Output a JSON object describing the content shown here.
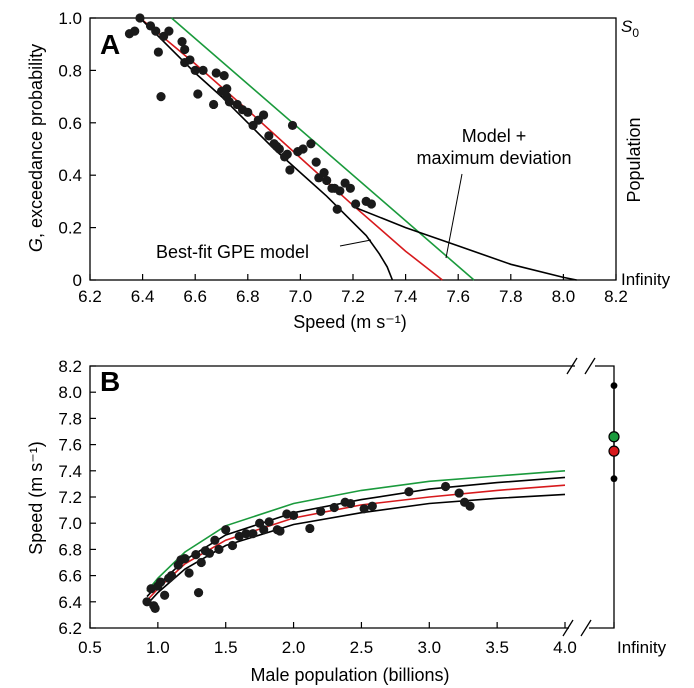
{
  "colors": {
    "model": "#d7191c",
    "max_deviation": "#1a9a3c",
    "fit": "#000000",
    "points": "#1a1a1a"
  },
  "chart_data": [
    {
      "panel": "A",
      "type": "scatter",
      "xlabel": "Speed (m s⁻¹)",
      "ylabel_italic": "G",
      "ylabel_rest": ", exceedance probability",
      "right_labels": {
        "top": "S",
        "top_sub": "0",
        "middle": "Population",
        "bottom": "Infinity"
      },
      "xlim": [
        6.2,
        8.2
      ],
      "ylim": [
        0,
        1.0
      ],
      "xticks": [
        "6.2",
        "6.4",
        "6.6",
        "6.8",
        "7.0",
        "7.2",
        "7.4",
        "7.6",
        "7.8",
        "8.0",
        "8.2"
      ],
      "yticks": [
        "0",
        "0.2",
        "0.4",
        "0.6",
        "0.8",
        "1.0"
      ],
      "annotations": {
        "best_fit": "Best-fit GPE model",
        "model_line1": "Model +",
        "model_line2": "maximum deviation"
      },
      "points": [
        [
          6.35,
          0.94
        ],
        [
          6.37,
          0.95
        ],
        [
          6.39,
          1.0
        ],
        [
          6.43,
          0.97
        ],
        [
          6.45,
          0.95
        ],
        [
          6.46,
          0.87
        ],
        [
          6.47,
          0.7
        ],
        [
          6.48,
          0.93
        ],
        [
          6.5,
          0.95
        ],
        [
          6.55,
          0.91
        ],
        [
          6.56,
          0.88
        ],
        [
          6.56,
          0.83
        ],
        [
          6.58,
          0.84
        ],
        [
          6.6,
          0.8
        ],
        [
          6.61,
          0.71
        ],
        [
          6.63,
          0.8
        ],
        [
          6.67,
          0.67
        ],
        [
          6.68,
          0.79
        ],
        [
          6.7,
          0.72
        ],
        [
          6.71,
          0.78
        ],
        [
          6.72,
          0.73
        ],
        [
          6.72,
          0.7
        ],
        [
          6.73,
          0.68
        ],
        [
          6.76,
          0.67
        ],
        [
          6.78,
          0.65
        ],
        [
          6.8,
          0.64
        ],
        [
          6.82,
          0.59
        ],
        [
          6.84,
          0.61
        ],
        [
          6.86,
          0.63
        ],
        [
          6.88,
          0.55
        ],
        [
          6.9,
          0.52
        ],
        [
          6.91,
          0.51
        ],
        [
          6.92,
          0.5
        ],
        [
          6.94,
          0.47
        ],
        [
          6.95,
          0.48
        ],
        [
          6.96,
          0.42
        ],
        [
          6.97,
          0.59
        ],
        [
          6.99,
          0.49
        ],
        [
          7.01,
          0.5
        ],
        [
          7.04,
          0.52
        ],
        [
          7.06,
          0.45
        ],
        [
          7.07,
          0.39
        ],
        [
          7.09,
          0.41
        ],
        [
          7.1,
          0.38
        ],
        [
          7.12,
          0.35
        ],
        [
          7.13,
          0.35
        ],
        [
          7.14,
          0.27
        ],
        [
          7.15,
          0.34
        ],
        [
          7.17,
          0.37
        ],
        [
          7.19,
          0.35
        ],
        [
          7.21,
          0.29
        ],
        [
          7.25,
          0.3
        ],
        [
          7.27,
          0.29
        ]
      ],
      "series": [
        {
          "key": "max_deviation",
          "x": [
            6.51,
            7.66
          ],
          "y": [
            1.0,
            0.0
          ]
        },
        {
          "key": "model",
          "x": [
            6.39,
            6.6,
            6.8,
            7.0,
            7.2,
            7.4,
            7.54
          ],
          "y": [
            1.0,
            0.825,
            0.648,
            0.466,
            0.285,
            0.11,
            0.0
          ]
        },
        {
          "key": "fit",
          "x": [
            6.39,
            6.5,
            6.6,
            6.7,
            6.8,
            6.9,
            7.0,
            7.1,
            7.2,
            7.25,
            7.3,
            7.33,
            7.35
          ],
          "y": [
            1.0,
            0.89,
            0.79,
            0.7,
            0.6,
            0.5,
            0.41,
            0.32,
            0.22,
            0.17,
            0.1,
            0.05,
            0.0
          ]
        },
        {
          "key": "fit",
          "x": [
            7.2,
            7.4,
            7.6,
            7.8,
            8.0,
            8.05
          ],
          "y": [
            0.28,
            0.2,
            0.13,
            0.06,
            0.01,
            0.0
          ]
        }
      ]
    },
    {
      "panel": "B",
      "type": "scatter",
      "xlabel": "Male population (billions)",
      "ylabel": "Speed (m s⁻¹)",
      "xlim": [
        0.5,
        4.0
      ],
      "ylim": [
        6.2,
        8.2
      ],
      "xticks": [
        "0.5",
        "1.0",
        "1.5",
        "2.0",
        "2.5",
        "3.0",
        "3.5",
        "4.0"
      ],
      "yticks": [
        "6.2",
        "6.4",
        "6.6",
        "6.8",
        "7.0",
        "7.2",
        "7.4",
        "7.6",
        "7.8",
        "8.0",
        "8.2"
      ],
      "infinity_label": "Infinity",
      "infinity_points": [
        {
          "y": 8.05,
          "key": "fit"
        },
        {
          "y": 7.66,
          "key": "max_deviation"
        },
        {
          "y": 7.55,
          "key": "model"
        },
        {
          "y": 7.34,
          "key": "fit"
        }
      ],
      "points": [
        [
          0.92,
          6.4
        ],
        [
          0.95,
          6.5
        ],
        [
          0.97,
          6.37
        ],
        [
          0.98,
          6.35
        ],
        [
          1.0,
          6.52
        ],
        [
          1.02,
          6.55
        ],
        [
          1.05,
          6.45
        ],
        [
          1.08,
          6.58
        ],
        [
          1.1,
          6.6
        ],
        [
          1.15,
          6.68
        ],
        [
          1.17,
          6.72
        ],
        [
          1.2,
          6.73
        ],
        [
          1.23,
          6.62
        ],
        [
          1.28,
          6.76
        ],
        [
          1.3,
          6.47
        ],
        [
          1.32,
          6.7
        ],
        [
          1.35,
          6.79
        ],
        [
          1.38,
          6.77
        ],
        [
          1.42,
          6.87
        ],
        [
          1.45,
          6.8
        ],
        [
          1.5,
          6.95
        ],
        [
          1.55,
          6.83
        ],
        [
          1.6,
          6.9
        ],
        [
          1.65,
          6.92
        ],
        [
          1.7,
          6.92
        ],
        [
          1.75,
          7.0
        ],
        [
          1.78,
          6.95
        ],
        [
          1.82,
          7.01
        ],
        [
          1.88,
          6.95
        ],
        [
          1.9,
          6.94
        ],
        [
          1.95,
          7.07
        ],
        [
          2.0,
          7.06
        ],
        [
          2.12,
          6.96
        ],
        [
          2.2,
          7.09
        ],
        [
          2.3,
          7.12
        ],
        [
          2.38,
          7.16
        ],
        [
          2.42,
          7.15
        ],
        [
          2.52,
          7.11
        ],
        [
          2.58,
          7.13
        ],
        [
          2.85,
          7.24
        ],
        [
          3.12,
          7.28
        ],
        [
          3.22,
          7.23
        ],
        [
          3.26,
          7.16
        ],
        [
          3.3,
          7.13
        ]
      ],
      "series": [
        {
          "key": "max_deviation",
          "x": [
            0.92,
            1.0,
            1.2,
            1.5,
            2.0,
            2.5,
            3.0,
            3.5,
            4.0
          ],
          "y": [
            6.48,
            6.58,
            6.78,
            6.98,
            7.15,
            7.25,
            7.32,
            7.36,
            7.4
          ]
        },
        {
          "key": "fit",
          "x": [
            0.92,
            1.0,
            1.2,
            1.5,
            2.0,
            2.5,
            3.0,
            3.5,
            4.0
          ],
          "y": [
            6.44,
            6.53,
            6.72,
            6.91,
            7.08,
            7.18,
            7.26,
            7.31,
            7.35
          ]
        },
        {
          "key": "model",
          "x": [
            0.92,
            1.0,
            1.2,
            1.5,
            2.0,
            2.5,
            3.0,
            3.5,
            4.0
          ],
          "y": [
            6.41,
            6.5,
            6.69,
            6.87,
            7.04,
            7.14,
            7.2,
            7.25,
            7.29
          ]
        },
        {
          "key": "fit",
          "x": [
            0.92,
            1.0,
            1.2,
            1.5,
            2.0,
            2.5,
            3.0,
            3.5,
            4.0
          ],
          "y": [
            6.38,
            6.47,
            6.65,
            6.83,
            6.99,
            7.08,
            7.15,
            7.19,
            7.22
          ]
        }
      ]
    }
  ]
}
